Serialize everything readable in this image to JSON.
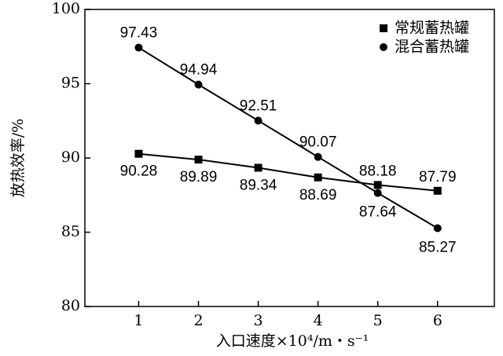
{
  "chart_data": {
    "type": "line",
    "x": [
      1,
      2,
      3,
      4,
      5,
      6
    ],
    "xlim": [
      0.1,
      6.95
    ],
    "ylim": [
      80,
      100
    ],
    "x_ticks": [
      "1",
      "2",
      "3",
      "4",
      "5",
      "6"
    ],
    "y_ticks": [
      "80",
      "85",
      "90",
      "95",
      "100"
    ],
    "xlabel": "入口速度×10⁴/m・s⁻¹",
    "ylabel": "放热效率/%",
    "grid": false,
    "legend_position": "top-right",
    "series": [
      {
        "name": "常规蓄热罐",
        "marker": "square",
        "color": "#000000",
        "values": [
          90.28,
          89.89,
          89.34,
          88.69,
          88.18,
          87.79
        ],
        "labels": [
          "90.28",
          "89.89",
          "89.34",
          "88.69",
          "88.18",
          "87.79"
        ]
      },
      {
        "name": "混合蓄热罐",
        "marker": "circle",
        "color": "#000000",
        "values": [
          97.43,
          94.94,
          92.51,
          90.07,
          87.64,
          85.27
        ],
        "labels": [
          "97.43",
          "94.94",
          "92.51",
          "90.07",
          "87.64",
          "85.27"
        ]
      }
    ]
  }
}
